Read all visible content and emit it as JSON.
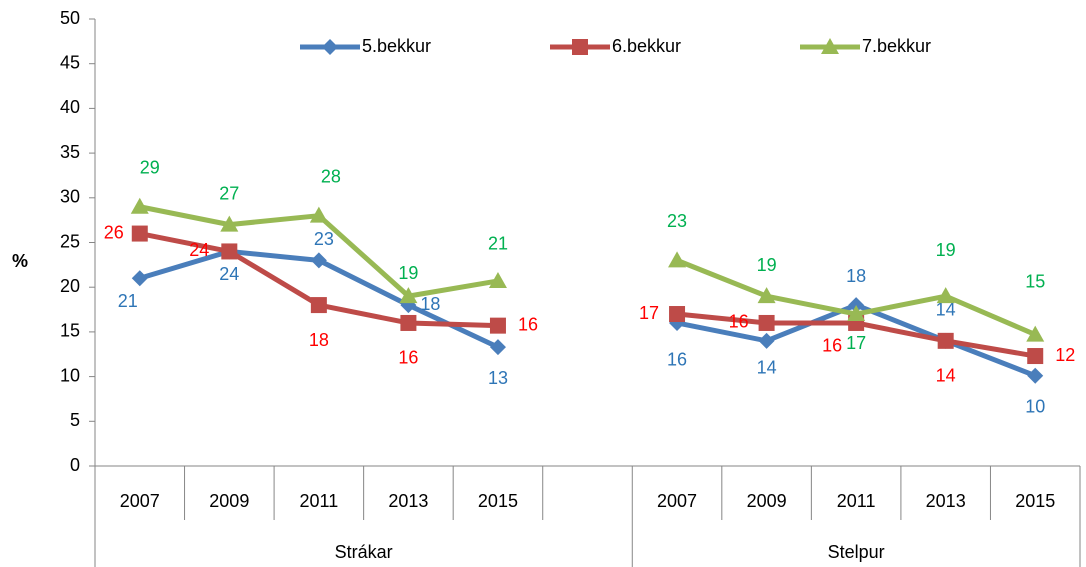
{
  "chart_data": {
    "type": "line",
    "y_label": "%",
    "categories": [
      "2007",
      "2009",
      "2011",
      "2013",
      "2015",
      null,
      "2007",
      "2009",
      "2011",
      "2013",
      "2015"
    ],
    "groups": [
      "Strákar",
      "Stelpur"
    ],
    "ylim": [
      0,
      50
    ],
    "yticks": [
      0,
      5,
      10,
      15,
      20,
      25,
      30,
      35,
      40,
      45,
      50
    ],
    "grid": false,
    "legend": "top",
    "series": [
      {
        "name": "5.bekkur",
        "color": "#4a7ebb",
        "label_color": "#2e75b6",
        "marker": "diamond",
        "values": [
          21,
          24,
          23,
          18,
          13.3,
          null,
          16,
          14,
          18,
          14,
          10.1
        ],
        "value_labels": [
          "21",
          "24",
          "23",
          "18",
          "13",
          null,
          "16",
          "14",
          "18",
          "14",
          "10"
        ]
      },
      {
        "name": "6.bekkur",
        "color": "#be4b48",
        "label_color": "#ff0000",
        "marker": "square",
        "values": [
          26,
          24,
          18,
          16,
          15.7,
          null,
          17,
          16,
          16,
          14,
          12.3
        ],
        "value_labels": [
          "26",
          "24",
          "18",
          "16",
          "16",
          null,
          "17",
          "16",
          "16",
          "14",
          "12"
        ]
      },
      {
        "name": "7.bekkur",
        "color": "#98b954",
        "label_color": "#00b050",
        "marker": "triangle",
        "values": [
          29,
          27,
          28,
          19,
          20.7,
          null,
          23,
          19,
          17,
          19,
          14.7
        ],
        "value_labels": [
          "29",
          "27",
          "28",
          "19",
          "21",
          null,
          "23",
          "19",
          "17",
          "19",
          "15"
        ]
      }
    ]
  }
}
